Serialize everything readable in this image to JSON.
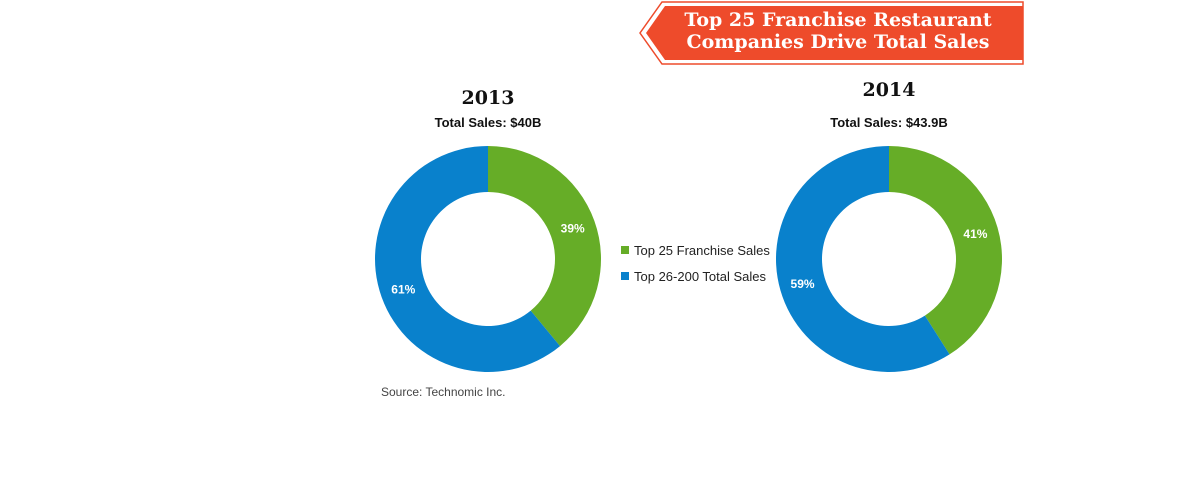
{
  "banner": {
    "line1": "Top 25 Franchise Restaurant",
    "line2": "Companies Drive Total Sales",
    "color": "#ee4b2b"
  },
  "legend": {
    "items": [
      {
        "label": "Top 25 Franchise Sales",
        "color": "#66ad27"
      },
      {
        "label": "Top 26-200 Total Sales",
        "color": "#0981cc"
      }
    ]
  },
  "source": "Source: Technomic Inc.",
  "chart_data": [
    {
      "type": "pie",
      "title": "2013",
      "subtitle": "Total Sales: $40B",
      "slices": [
        {
          "label": "Top 25 Franchise Sales",
          "value": 39,
          "display": "39%",
          "color": "#66ad27"
        },
        {
          "label": "Top 26-200 Total Sales",
          "value": 61,
          "display": "61%",
          "color": "#0981cc"
        }
      ]
    },
    {
      "type": "pie",
      "title": "2014",
      "subtitle": "Total Sales: $43.9B",
      "slices": [
        {
          "label": "Top 25 Franchise Sales",
          "value": 41,
          "display": "41%",
          "color": "#66ad27"
        },
        {
          "label": "Top 26-200 Total Sales",
          "value": 59,
          "display": "59%",
          "color": "#0981cc"
        }
      ]
    }
  ]
}
